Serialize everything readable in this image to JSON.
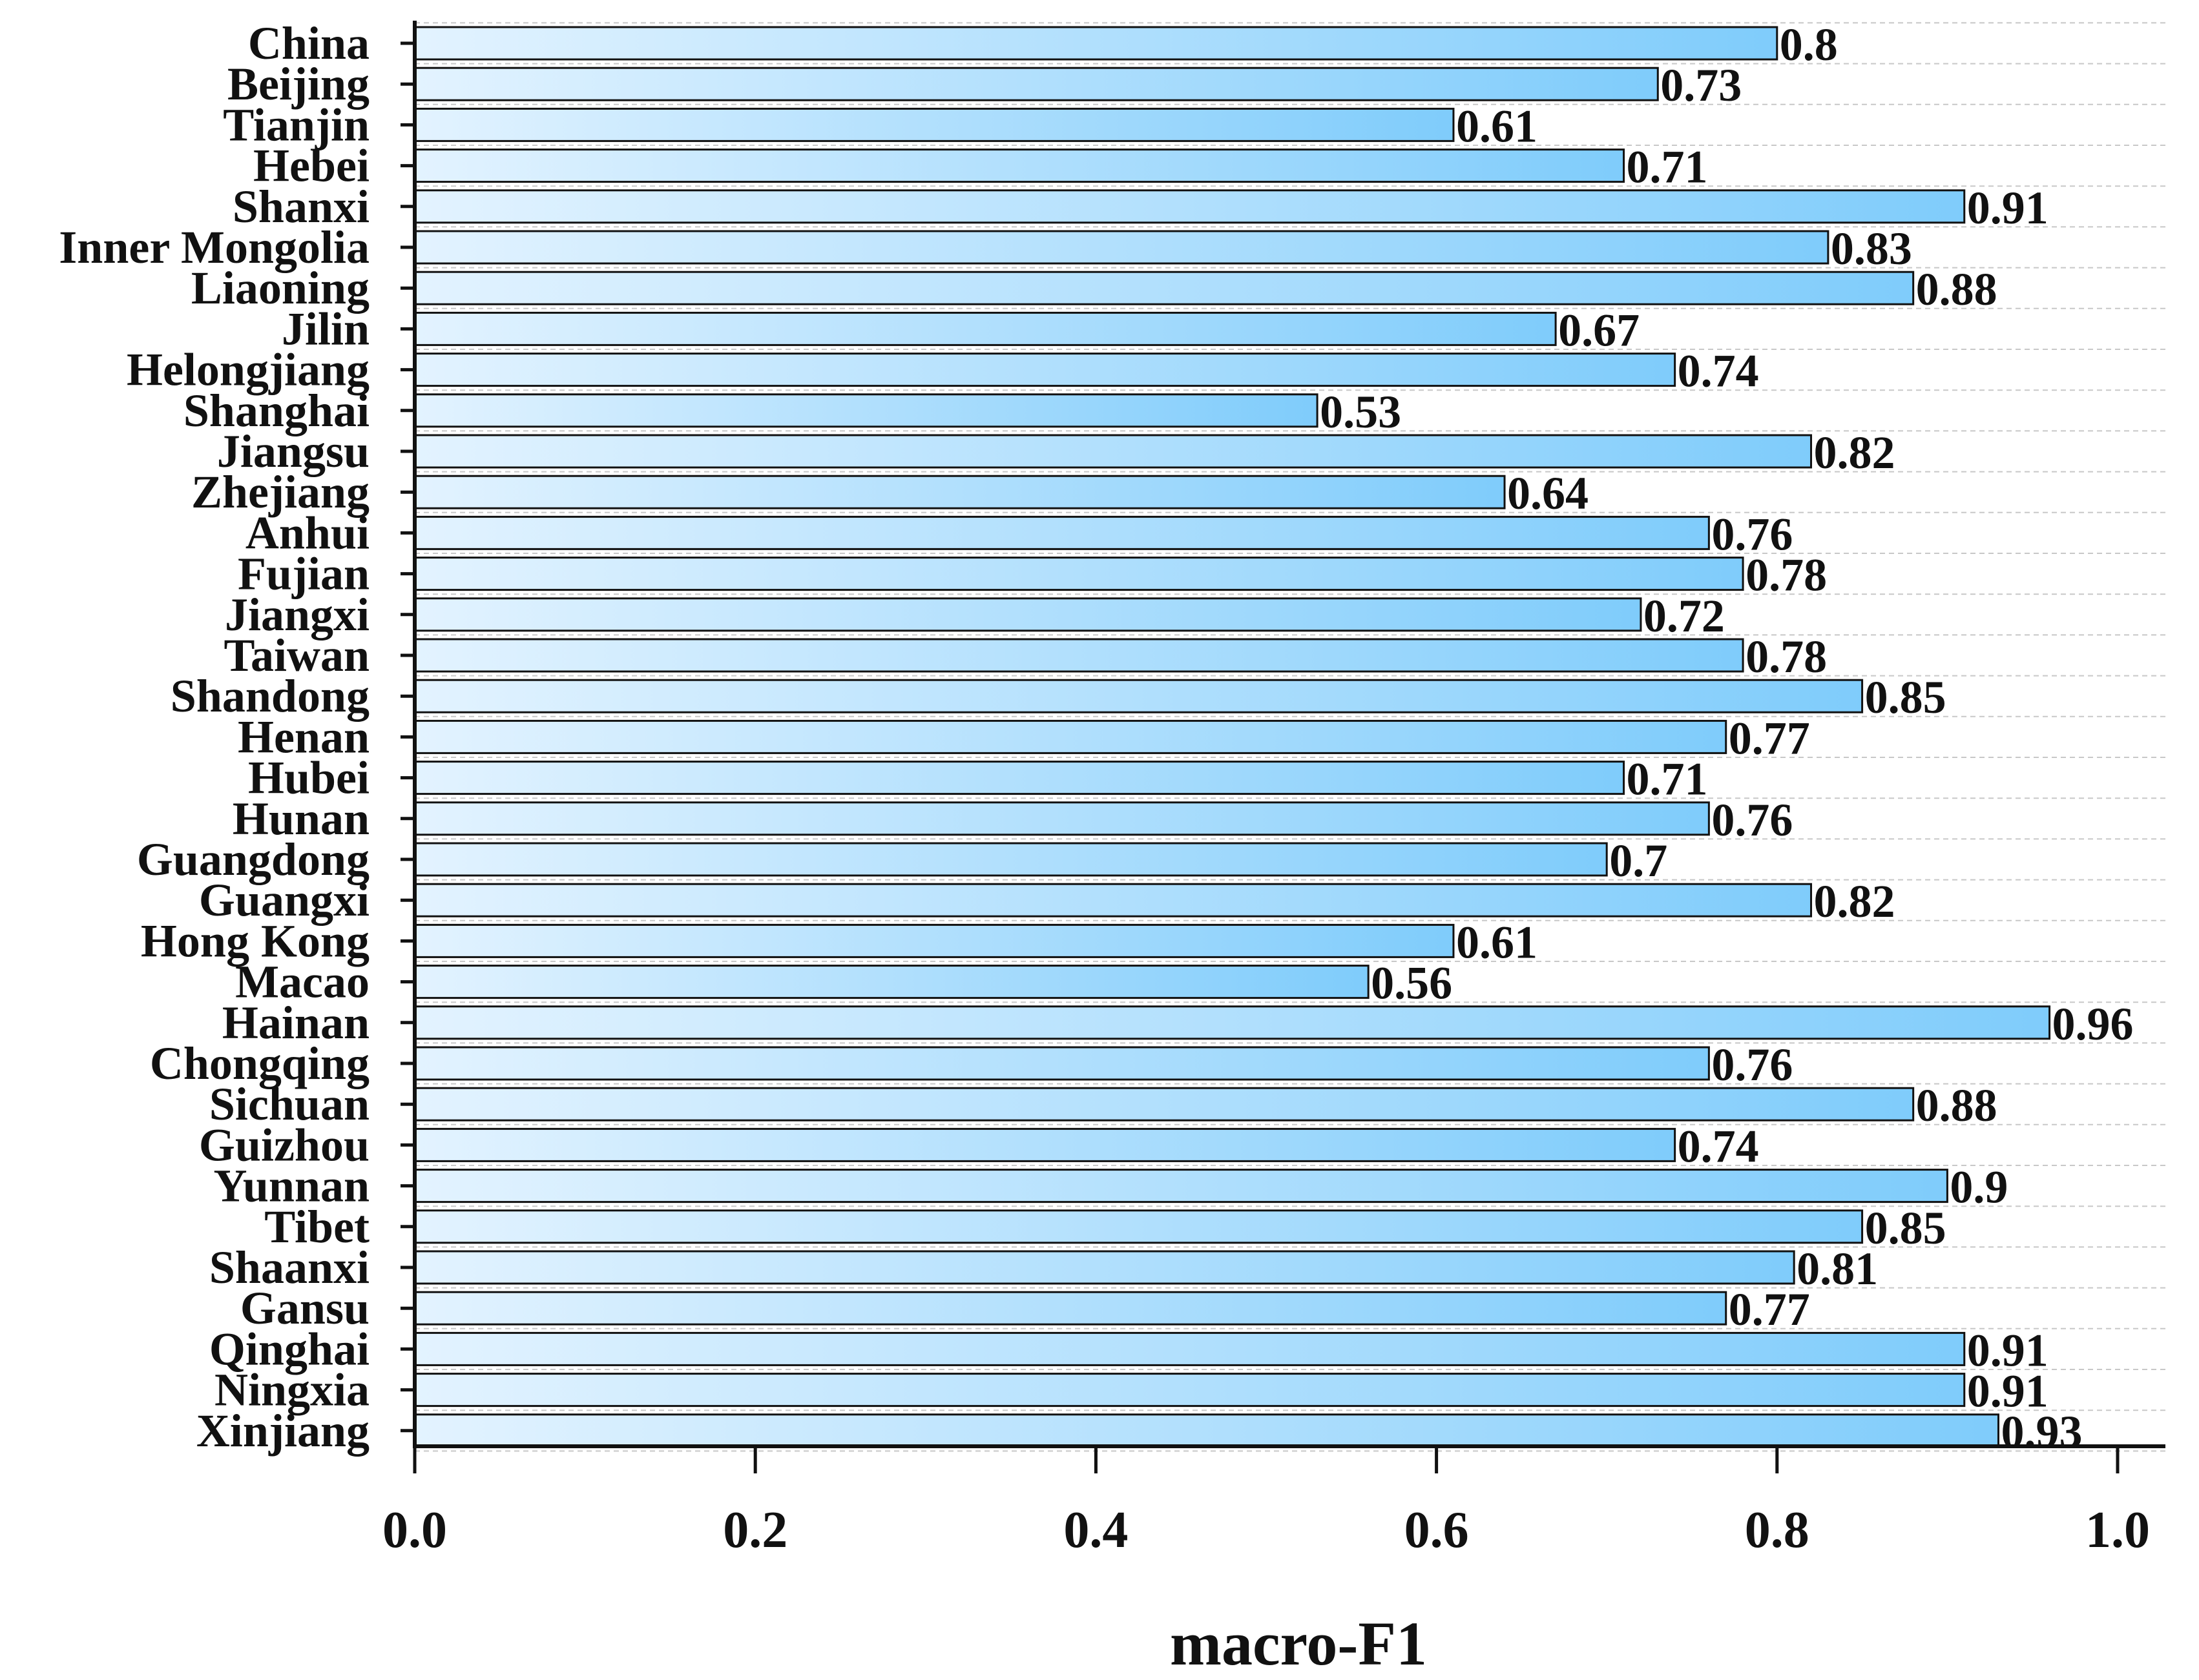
{
  "chart_data": {
    "type": "bar",
    "orientation": "horizontal",
    "xlabel": "macro-F1",
    "ylabel": "",
    "xlim": [
      0,
      1.0
    ],
    "xticks": [
      "0.0",
      "0.2",
      "0.4",
      "0.6",
      "0.8",
      "1.0"
    ],
    "grid": "horizontal dashed",
    "categories": [
      "China",
      "Beijing",
      "Tianjin",
      "Hebei",
      "Shanxi",
      "Inner Mongolia",
      "Liaoning",
      "Jilin",
      "Helongjiang",
      "Shanghai",
      "Jiangsu",
      "Zhejiang",
      "Anhui",
      "Fujian",
      "Jiangxi",
      "Taiwan",
      "Shandong",
      "Henan",
      "Hubei",
      "Hunan",
      "Guangdong",
      "Guangxi",
      "Hong Kong",
      "Macao",
      "Hainan",
      "Chongqing",
      "Sichuan",
      "Guizhou",
      "Yunnan",
      "Tibet",
      "Shaanxi",
      "Gansu",
      "Qinghai",
      "Ningxia",
      "Xinjiang"
    ],
    "values": [
      0.8,
      0.73,
      0.61,
      0.71,
      0.91,
      0.83,
      0.88,
      0.67,
      0.74,
      0.53,
      0.82,
      0.64,
      0.76,
      0.78,
      0.72,
      0.78,
      0.85,
      0.77,
      0.71,
      0.76,
      0.7,
      0.82,
      0.61,
      0.56,
      0.96,
      0.76,
      0.88,
      0.74,
      0.9,
      0.85,
      0.81,
      0.77,
      0.91,
      0.91,
      0.93
    ],
    "value_labels": [
      "0.8",
      "0.73",
      "0.61",
      "0.71",
      "0.91",
      "0.83",
      "0.88",
      "0.67",
      "0.74",
      "0.53",
      "0.82",
      "0.64",
      "0.76",
      "0.78",
      "0.72",
      "0.78",
      "0.85",
      "0.77",
      "0.71",
      "0.76",
      "0.7",
      "0.82",
      "0.61",
      "0.56",
      "0.96",
      "0.76",
      "0.88",
      "0.74",
      "0.9",
      "0.85",
      "0.81",
      "0.77",
      "0.91",
      "0.91",
      "0.93"
    ],
    "colors": {
      "bar_start": "#e3f3ff",
      "bar_end": "#7fccfb",
      "bar_stroke": "#111111",
      "grid": "#c8c8c8",
      "axis": "#111111"
    }
  }
}
